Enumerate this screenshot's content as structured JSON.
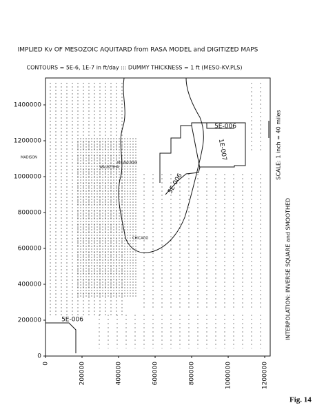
{
  "chart_data": {
    "type": "contour",
    "title": "IMPLIED Kv OF MESOZOIC AQUITARD from RASA MODEL and DIGITIZED MAPS",
    "subtitle": "CONTOURS = 5E-6, 1E-7 in ft/day   :::  DUMMY THICKNESS = 1 ft    (MESO-KV.PLS)",
    "xlim": [
      0,
      1230000
    ],
    "ylim": [
      0,
      1550000
    ],
    "xticks": [
      0,
      200000,
      400000,
      600000,
      800000,
      1000000,
      1200000
    ],
    "yticks": [
      0,
      200000,
      400000,
      600000,
      800000,
      1000000,
      1200000,
      1400000
    ],
    "contour_labels": [
      "5E-006",
      "1E-007",
      "5E-006",
      "5E-006"
    ],
    "places": [
      "MADISON",
      "MILWAUKEE",
      "WAUKESHA",
      "CHICAGO"
    ],
    "scale_note": "SCALE: 1 inch = 40 miles",
    "method_note": "INTERPOLATION: INVERSE SQUARE and SMOOTHED",
    "figure_label": "Fig. 14"
  }
}
